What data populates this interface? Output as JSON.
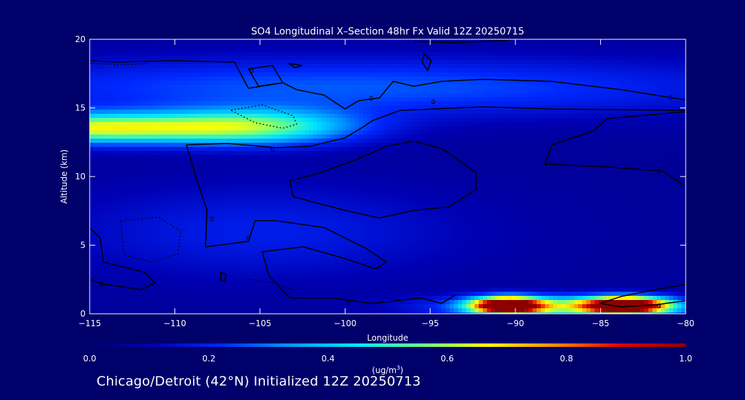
{
  "chart_data": {
    "type": "heatmap",
    "title": "SO4 Longitudinal X–Section 48hr  Fx Valid 12Z 20250715",
    "xlabel": "Longitude",
    "ylabel": "Altitude (km)",
    "xlim": [
      -115,
      -80
    ],
    "ylim": [
      0,
      20
    ],
    "x_ticks": [
      -115,
      -110,
      -105,
      -100,
      -95,
      -90,
      -85,
      -80
    ],
    "x_tick_labels": [
      "−115",
      "−110",
      "−105",
      "−100",
      "−95",
      "−90",
      "−85",
      "−80"
    ],
    "y_ticks": [
      0,
      5,
      10,
      15,
      20
    ],
    "y_tick_labels": [
      "0",
      "5",
      "10",
      "15",
      "20"
    ],
    "colorbar": {
      "min": 0.0,
      "max": 1.0,
      "ticks": [
        0.0,
        0.2,
        0.4,
        0.6,
        0.8,
        1.0
      ],
      "tick_labels": [
        "0.0",
        "0.2",
        "0.4",
        "0.6",
        "0.8",
        "1.0"
      ],
      "unit_label_prefix": "(ug/m",
      "unit_label_sup": "3",
      "unit_label_suffix": ")",
      "colors": [
        "#00006b",
        "#0000b4",
        "#0028ff",
        "#0096ff",
        "#00e6ff",
        "#64ff8c",
        "#ffff00",
        "#ff8c00",
        "#e60000",
        "#8c0000"
      ]
    },
    "contour_label": "0",
    "features": [
      {
        "name": "upper-plume",
        "lon": -115,
        "alt": 13.5,
        "value": 0.55,
        "sx": 8,
        "sy": 1.1
      },
      {
        "name": "upper-plume-tail",
        "lon": -105,
        "alt": 13.6,
        "value": 0.4,
        "sx": 6,
        "sy": 1.3
      },
      {
        "name": "upper-layer",
        "lon": -100,
        "alt": 16.5,
        "value": 0.2,
        "sx": 25,
        "sy": 2.2
      },
      {
        "name": "mid-layer",
        "lon": -105,
        "alt": 6,
        "value": 0.12,
        "sx": 12,
        "sy": 3.5
      },
      {
        "name": "boundary-layer-1",
        "lon": -90.5,
        "alt": 0.6,
        "value": 1.0,
        "sx": 2,
        "sy": 0.6
      },
      {
        "name": "boundary-layer-2",
        "lon": -83.5,
        "alt": 0.6,
        "value": 1.0,
        "sx": 2.4,
        "sy": 0.6
      },
      {
        "name": "boundary-layer-base",
        "lon": -87,
        "alt": 0.5,
        "value": 0.45,
        "sx": 7,
        "sy": 0.8
      }
    ]
  },
  "footer": {
    "text": "Chicago/Detroit (42°N) Initialized 12Z 20250713"
  }
}
